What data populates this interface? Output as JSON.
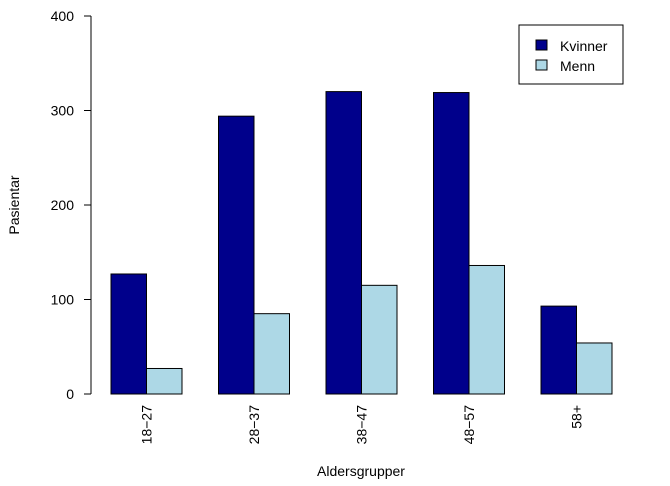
{
  "chart_data": {
    "type": "bar",
    "title": "",
    "xlabel": "Aldersgrupper",
    "ylabel": "Pasientar",
    "ylim": [
      0,
      400
    ],
    "yticks": [
      0,
      100,
      200,
      300,
      400
    ],
    "grid": false,
    "legend_position": "top-right",
    "categories": [
      "18−27",
      "28−37",
      "38−47",
      "48−57",
      "58+"
    ],
    "series": [
      {
        "name": "Kvinner",
        "color": "#00008b",
        "values": [
          127,
          294,
          320,
          319,
          93
        ]
      },
      {
        "name": "Menn",
        "color": "#add8e6",
        "values": [
          27,
          85,
          115,
          136,
          54
        ]
      }
    ]
  }
}
